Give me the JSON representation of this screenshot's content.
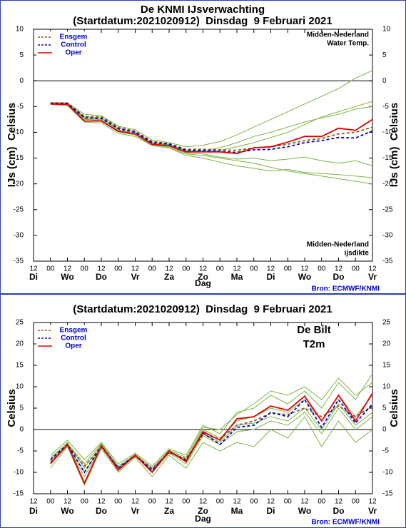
{
  "chart_data": [
    {
      "type": "line",
      "title": "De KNMI IJsverwachting",
      "subtitle": "(Startdatum:2021020912)  Dinsdag  9 Februari 2021",
      "y_label": "IJs (cm)  Celsius",
      "x_label": "Dag",
      "source": "Bron: ECMWF/KNMI",
      "annotations": [
        "Midden-Nederland",
        "Water Temp.",
        "Midden-Nederland",
        "ijsdikte"
      ],
      "x": [
        12,
        24,
        36,
        48,
        60,
        72,
        84,
        96,
        108,
        120,
        132,
        144,
        156,
        168,
        180,
        192,
        204,
        216,
        228,
        240
      ],
      "xlim": [
        0,
        240
      ],
      "xticks": [
        {
          "value": 0,
          "label": "12"
        },
        {
          "value": 12,
          "label": "00"
        },
        {
          "value": 24,
          "label": "12"
        },
        {
          "value": 36,
          "label": "00"
        },
        {
          "value": 48,
          "label": "12"
        },
        {
          "value": 60,
          "label": "00"
        },
        {
          "value": 72,
          "label": "12"
        },
        {
          "value": 84,
          "label": "00"
        },
        {
          "value": 96,
          "label": "12"
        },
        {
          "value": 108,
          "label": "00"
        },
        {
          "value": 120,
          "label": "12"
        },
        {
          "value": 132,
          "label": "00"
        },
        {
          "value": 144,
          "label": "12"
        },
        {
          "value": 156,
          "label": "00"
        },
        {
          "value": 168,
          "label": "12"
        },
        {
          "value": 180,
          "label": "00"
        },
        {
          "value": 192,
          "label": "12"
        },
        {
          "value": 204,
          "label": "00"
        },
        {
          "value": 216,
          "label": "12"
        },
        {
          "value": 228,
          "label": "00"
        },
        {
          "value": 240,
          "label": "12"
        }
      ],
      "day_labels": [
        {
          "value": 0,
          "label": "Di"
        },
        {
          "value": 24,
          "label": "Wo"
        },
        {
          "value": 48,
          "label": "Do"
        },
        {
          "value": 72,
          "label": "Vr"
        },
        {
          "value": 96,
          "label": "Za"
        },
        {
          "value": 120,
          "label": "Zo"
        },
        {
          "value": 144,
          "label": "Ma"
        },
        {
          "value": 168,
          "label": "Di"
        },
        {
          "value": 192,
          "label": "Wo"
        },
        {
          "value": 216,
          "label": "Do"
        },
        {
          "value": 240,
          "label": "Vr"
        }
      ],
      "ylim": [
        -35,
        10
      ],
      "yticks": [
        -35,
        -30,
        -25,
        -20,
        -15,
        -10,
        -5,
        0,
        5,
        10
      ],
      "zero_line": true,
      "member_color": "#7cb342",
      "members": [
        [
          -4.2,
          -4.3,
          -6.5,
          -6.8,
          -8.8,
          -9.5,
          -11.5,
          -12,
          -12.8,
          -12.5,
          -11.8,
          -10.5,
          -9,
          -7.5,
          -6,
          -4.5,
          -3,
          -1.5,
          0.5,
          2
        ],
        [
          -4.6,
          -4.8,
          -8,
          -8.2,
          -10.2,
          -10.8,
          -12.6,
          -13,
          -14.2,
          -14.5,
          -15,
          -15.5,
          -16,
          -16.8,
          -17.5,
          -18,
          -18.5,
          -19,
          -19.5,
          -20
        ],
        [
          -4.4,
          -4.5,
          -7.5,
          -7.6,
          -9.6,
          -10.2,
          -12.2,
          -12.5,
          -13.5,
          -13.8,
          -13.5,
          -12.8,
          -12,
          -11,
          -10,
          -8.5,
          -7,
          -6,
          -5,
          -4
        ],
        [
          -4.5,
          -4.6,
          -7.2,
          -7.5,
          -9.5,
          -10.3,
          -12.4,
          -12.8,
          -14,
          -14.2,
          -14.8,
          -15.2,
          -15,
          -15.5,
          -15.2,
          -14.8,
          -15.5,
          -16,
          -15.5,
          -16.5
        ],
        [
          -4.3,
          -4.4,
          -7,
          -7.2,
          -9.2,
          -9.9,
          -12,
          -12.4,
          -13.6,
          -13.6,
          -13,
          -12,
          -10.8,
          -10,
          -9,
          -8,
          -7.2,
          -6.5,
          -5.5,
          -5
        ],
        [
          -4.4,
          -4.6,
          -7.4,
          -7.8,
          -9.9,
          -10.5,
          -12.5,
          -13,
          -14.5,
          -15,
          -15.8,
          -16.5,
          -17,
          -17.5,
          -17.2,
          -17.8,
          -18,
          -18.2,
          -18.5,
          -18.8
        ]
      ],
      "series": [
        {
          "name": "Ensgem",
          "color": "#8b5a1a",
          "line_style": "dashed",
          "values": [
            -4.3,
            -4.3,
            -6.9,
            -7.0,
            -9.0,
            -9.8,
            -11.8,
            -12.2,
            -13.3,
            -13.3,
            -13.4,
            -13.5,
            -13.0,
            -12.8,
            -12.3,
            -11.6,
            -11.2,
            -10.3,
            -10.0,
            -9.0
          ]
        },
        {
          "name": "Control",
          "color": "#0000cc",
          "line_style": "dashed",
          "values": [
            -4.4,
            -4.4,
            -7.2,
            -7.3,
            -9.3,
            -10.0,
            -12.0,
            -12.3,
            -13.5,
            -13.5,
            -13.7,
            -13.9,
            -13.4,
            -13.3,
            -12.8,
            -12.0,
            -11.6,
            -11.0,
            -11.1,
            -9.7
          ]
        },
        {
          "name": "Oper",
          "color": "#e00000",
          "line_style": "solid",
          "values": [
            -4.5,
            -4.6,
            -7.8,
            -7.8,
            -9.8,
            -10.3,
            -12.3,
            -12.6,
            -13.8,
            -13.8,
            -13.8,
            -14.1,
            -13.0,
            -12.8,
            -11.9,
            -10.8,
            -10.8,
            -9.2,
            -9.6,
            -7.5
          ]
        }
      ]
    },
    {
      "type": "line",
      "title": "(Startdatum:2021020912)  Dinsdag  9 Februari 2021",
      "y_label": "Celsius",
      "x_label": "Dag",
      "source": "Bron: ECMWF/KNMI",
      "annotations": [
        "De Bilt",
        "T2m"
      ],
      "x": [
        12,
        24,
        36,
        48,
        60,
        72,
        84,
        96,
        108,
        120,
        132,
        144,
        156,
        168,
        180,
        192,
        204,
        216,
        228,
        240
      ],
      "xlim": [
        0,
        240
      ],
      "xticks": [
        {
          "value": 0,
          "label": "12"
        },
        {
          "value": 12,
          "label": "00"
        },
        {
          "value": 24,
          "label": "12"
        },
        {
          "value": 36,
          "label": "00"
        },
        {
          "value": 48,
          "label": "12"
        },
        {
          "value": 60,
          "label": "00"
        },
        {
          "value": 72,
          "label": "12"
        },
        {
          "value": 84,
          "label": "00"
        },
        {
          "value": 96,
          "label": "12"
        },
        {
          "value": 108,
          "label": "00"
        },
        {
          "value": 120,
          "label": "12"
        },
        {
          "value": 132,
          "label": "00"
        },
        {
          "value": 144,
          "label": "12"
        },
        {
          "value": 156,
          "label": "00"
        },
        {
          "value": 168,
          "label": "12"
        },
        {
          "value": 180,
          "label": "00"
        },
        {
          "value": 192,
          "label": "12"
        },
        {
          "value": 204,
          "label": "00"
        },
        {
          "value": 216,
          "label": "12"
        },
        {
          "value": 228,
          "label": "00"
        },
        {
          "value": 240,
          "label": "12"
        }
      ],
      "day_labels": [
        {
          "value": 0,
          "label": "Di"
        },
        {
          "value": 24,
          "label": "Wo"
        },
        {
          "value": 48,
          "label": "Do"
        },
        {
          "value": 72,
          "label": "Vr"
        },
        {
          "value": 96,
          "label": "Za"
        },
        {
          "value": 120,
          "label": "Zo"
        },
        {
          "value": 144,
          "label": "Ma"
        },
        {
          "value": 168,
          "label": "Di"
        },
        {
          "value": 192,
          "label": "Wo"
        },
        {
          "value": 216,
          "label": "Do"
        },
        {
          "value": 240,
          "label": "Vr"
        }
      ],
      "ylim": [
        -15,
        25
      ],
      "yticks": [
        -15,
        -10,
        -5,
        0,
        5,
        10,
        15,
        20,
        25
      ],
      "zero_line": true,
      "member_color": "#7cb342",
      "members": [
        [
          -6,
          -2.5,
          -7,
          -3,
          -8,
          -5.5,
          -8.5,
          -4.5,
          -6,
          1,
          -1,
          4,
          5,
          8,
          6,
          9,
          5,
          11,
          7,
          13
        ],
        [
          -9,
          -4,
          -13,
          -4.5,
          -10,
          -6.5,
          -11,
          -6,
          -9,
          -3,
          -5,
          -3,
          -4,
          0,
          -2,
          3,
          -4,
          2,
          -3,
          0
        ],
        [
          -7,
          -3,
          -9,
          -3.5,
          -9,
          -6,
          -9.5,
          -5,
          -7,
          0,
          -2,
          2,
          3,
          5,
          4,
          7,
          2,
          8,
          3,
          8
        ],
        [
          -8,
          -3.8,
          -11,
          -4,
          -9.5,
          -6.2,
          -10,
          -5.5,
          -8,
          -1.5,
          -3.5,
          -0.5,
          0,
          2,
          1,
          4,
          -1,
          5,
          0,
          3
        ],
        [
          -6.5,
          -3.2,
          -8,
          -3.3,
          -8.5,
          -5.8,
          -9,
          -4.8,
          -6.5,
          0.5,
          0,
          3.5,
          6,
          9,
          8,
          10,
          7,
          12,
          8,
          11
        ],
        [
          -7.5,
          -3.5,
          -10,
          -4,
          -9.2,
          -6,
          -9.8,
          -5.2,
          -7.5,
          -1,
          -3,
          1,
          1.5,
          3,
          2,
          5,
          0,
          6,
          1,
          4
        ]
      ],
      "series": [
        {
          "name": "Ensgem",
          "color": "#8b5a1a",
          "line_style": "dashed",
          "values": [
            -7.5,
            -3.6,
            -8.5,
            -4.2,
            -8.8,
            -6.2,
            -9,
            -5.5,
            -6.8,
            -1.2,
            -2.2,
            1,
            2,
            3.8,
            3.5,
            5,
            3,
            5.5,
            3,
            5.5
          ]
        },
        {
          "name": "Control",
          "color": "#0000cc",
          "line_style": "dashed",
          "values": [
            -7,
            -3.5,
            -10,
            -3.8,
            -9,
            -6,
            -9.5,
            -5.2,
            -7.2,
            -0.8,
            -3.5,
            0.5,
            1,
            4,
            3,
            7,
            0.5,
            7,
            1.5,
            6
          ]
        },
        {
          "name": "Oper",
          "color": "#e00000",
          "line_style": "solid",
          "values": [
            -8,
            -3.5,
            -12.5,
            -3.8,
            -9.5,
            -6,
            -10,
            -5,
            -7.5,
            -0.5,
            -2.5,
            2.5,
            3,
            5.5,
            4.5,
            7.8,
            2,
            8,
            2,
            8.5
          ]
        }
      ]
    }
  ]
}
